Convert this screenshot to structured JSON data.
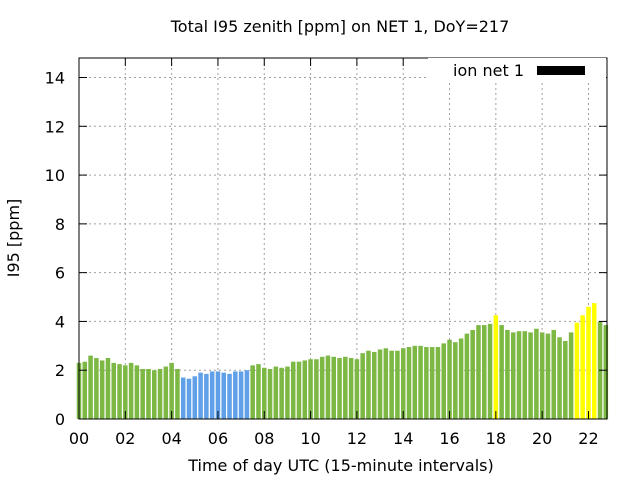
{
  "chart_data": {
    "type": "bar",
    "title": "Total I95 zenith [ppm] on NET 1, DoY=217",
    "xlabel": "Time of day UTC (15-minute intervals)",
    "ylabel": "I95 [ppm]",
    "xlim": [
      0,
      22.8
    ],
    "ylim": [
      0,
      14.8
    ],
    "yticks": [
      0,
      2,
      4,
      6,
      8,
      10,
      12,
      14
    ],
    "xticks": [
      0,
      2,
      4,
      6,
      8,
      10,
      12,
      14,
      16,
      18,
      20,
      22
    ],
    "xtick_labels": [
      "00",
      "02",
      "04",
      "06",
      "08",
      "10",
      "12",
      "14",
      "16",
      "18",
      "20",
      "22"
    ],
    "grid": true,
    "legend": {
      "position": "top-right",
      "entries": [
        {
          "label": "ion net 1",
          "color": "#000000"
        }
      ]
    },
    "bar_interval_hours": 0.25,
    "colors": {
      "green": "#7cb843",
      "blue": "#5fa0e8",
      "yellow": "#ffff00"
    },
    "series": [
      {
        "values": [
          2.3,
          2.35,
          2.6,
          2.5,
          2.4,
          2.5,
          2.3,
          2.25,
          2.2,
          2.3,
          2.2,
          2.05,
          2.05,
          2.0,
          2.05,
          2.15,
          2.3,
          2.05,
          1.7,
          1.65,
          1.75,
          1.9,
          1.85,
          1.95,
          1.95,
          1.9,
          1.85,
          1.95,
          1.95,
          2.0,
          2.2,
          2.25,
          2.1,
          2.05,
          2.15,
          2.1,
          2.15,
          2.35,
          2.35,
          2.4,
          2.45,
          2.45,
          2.55,
          2.6,
          2.55,
          2.5,
          2.55,
          2.5,
          2.45,
          2.7,
          2.8,
          2.75,
          2.85,
          2.9,
          2.8,
          2.8,
          2.9,
          2.95,
          3.0,
          3.0,
          2.95,
          2.95,
          2.95,
          3.1,
          3.25,
          3.15,
          3.3,
          3.5,
          3.65,
          3.85,
          3.85,
          3.9,
          4.25,
          3.85,
          3.65,
          3.55,
          3.6,
          3.6,
          3.55,
          3.7,
          3.55,
          3.5,
          3.65,
          3.35,
          3.2,
          3.55,
          3.95,
          4.25,
          4.6,
          4.75,
          4.0,
          3.85
        ],
        "colors": [
          "green",
          "green",
          "green",
          "green",
          "green",
          "green",
          "green",
          "green",
          "green",
          "green",
          "green",
          "green",
          "green",
          "green",
          "green",
          "green",
          "green",
          "green",
          "blue",
          "blue",
          "blue",
          "blue",
          "blue",
          "blue",
          "blue",
          "blue",
          "blue",
          "blue",
          "blue",
          "blue",
          "green",
          "green",
          "green",
          "green",
          "green",
          "green",
          "green",
          "green",
          "green",
          "green",
          "green",
          "green",
          "green",
          "green",
          "green",
          "green",
          "green",
          "green",
          "green",
          "green",
          "green",
          "green",
          "green",
          "green",
          "green",
          "green",
          "green",
          "green",
          "green",
          "green",
          "green",
          "green",
          "green",
          "green",
          "green",
          "green",
          "green",
          "green",
          "green",
          "green",
          "green",
          "green",
          "yellow",
          "green",
          "green",
          "green",
          "green",
          "green",
          "green",
          "green",
          "green",
          "green",
          "green",
          "green",
          "green",
          "green",
          "yellow",
          "yellow",
          "yellow",
          "yellow",
          "green",
          "green"
        ]
      }
    ]
  }
}
